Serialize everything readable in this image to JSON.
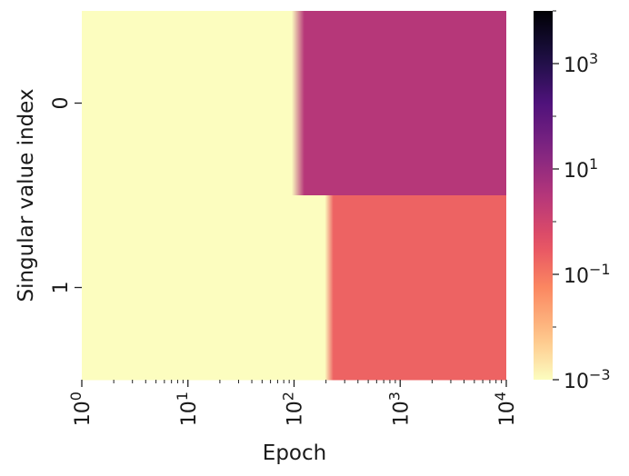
{
  "chart_data": {
    "type": "heatmap",
    "title": "",
    "xlabel": "Epoch",
    "ylabel": "Singular value index",
    "x_scale": "log",
    "x_range": [
      1,
      10000
    ],
    "x_ticks": [
      {
        "value": 1,
        "base": "10",
        "exp": "0"
      },
      {
        "value": 10,
        "base": "10",
        "exp": "1"
      },
      {
        "value": 100,
        "base": "10",
        "exp": "2"
      },
      {
        "value": 1000,
        "base": "10",
        "exp": "3"
      },
      {
        "value": 10000,
        "base": "10",
        "exp": "4"
      }
    ],
    "rows": [
      "0",
      "1"
    ],
    "series": [
      {
        "row": "0",
        "epochs": [
          1,
          95,
          125,
          10000
        ],
        "values": [
          0.001,
          0.001,
          3,
          3
        ]
      },
      {
        "row": "1",
        "epochs": [
          1,
          195,
          235,
          10000
        ],
        "values": [
          0.001,
          0.001,
          0.2,
          0.2
        ]
      }
    ],
    "colorbar": {
      "scale": "log",
      "range": [
        0.001,
        10000
      ],
      "colormap": "magma_r",
      "ticks": [
        {
          "value": 0.001,
          "base": "10",
          "exp": "−3"
        },
        {
          "value": 0.1,
          "base": "10",
          "exp": "−1"
        },
        {
          "value": 10,
          "base": "10",
          "exp": "1"
        },
        {
          "value": 1000,
          "base": "10",
          "exp": "3"
        }
      ]
    },
    "grid": false
  }
}
